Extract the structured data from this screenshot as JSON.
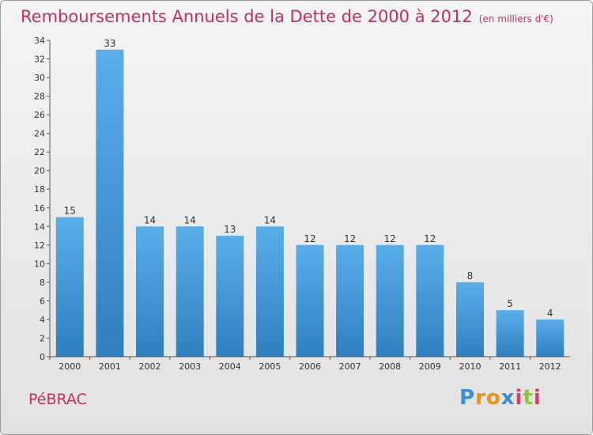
{
  "title": "Remboursements Annuels de la Dette de 2000 à 2012",
  "unit_label": "(en milliers d'€)",
  "commune": "PéBRAC",
  "logo": {
    "text": "Proxiti",
    "letter_colors": [
      "#3a8fd8",
      "#e8921c",
      "#e8921c",
      "#3a8fd8",
      "#e03c6a",
      "#8cc63f",
      "#e03c6a"
    ]
  },
  "colors": {
    "bar_top": "#5aaee8",
    "bar_bottom": "#2f7fc0",
    "title": "#c4305a"
  },
  "chart_data": {
    "type": "bar",
    "categories": [
      "2000",
      "2001",
      "2002",
      "2003",
      "2004",
      "2005",
      "2006",
      "2007",
      "2008",
      "2009",
      "2010",
      "2011",
      "2012"
    ],
    "values": [
      15,
      33,
      14,
      14,
      13,
      14,
      12,
      12,
      12,
      12,
      8,
      5,
      4
    ],
    "data_labels": [
      "15",
      "33",
      "14",
      "14",
      "13",
      "14",
      "12",
      "12",
      "12",
      "12",
      "8",
      "5",
      "4"
    ],
    "ylim": [
      0,
      34
    ],
    "yticks": [
      0,
      2,
      4,
      6,
      8,
      10,
      12,
      14,
      16,
      18,
      20,
      22,
      24,
      26,
      28,
      30,
      32,
      34
    ],
    "grid": false,
    "title": "Remboursements Annuels de la Dette de 2000 à 2012",
    "xlabel": "",
    "ylabel": ""
  }
}
